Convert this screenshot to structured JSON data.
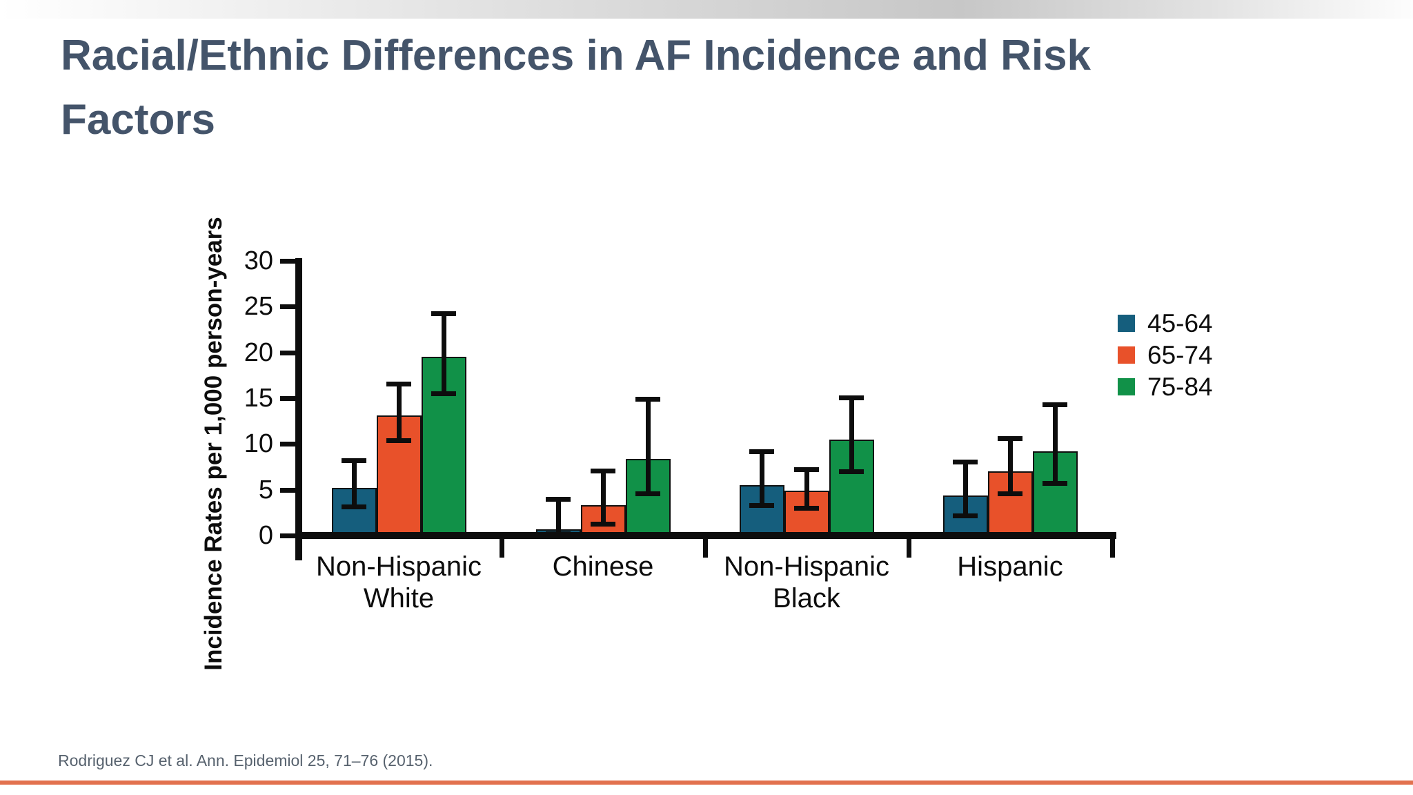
{
  "slide": {
    "title_line1": "Racial/Ethnic Differences in AF Incidence and Risk",
    "title_line2": "Factors",
    "citation": "Rodriguez CJ et al. Ann. Epidemiol 25, 71–76 (2015)."
  },
  "colors": {
    "title_text": "#44546a",
    "citation_text": "#57626e",
    "bottom_accent_line": "#e2714e",
    "axis_and_error_bars": "#0d0d0d",
    "series_45_64": "#155e7d",
    "series_65_74": "#e8512a",
    "series_75_84": "#119148"
  },
  "chart_data": {
    "type": "bar",
    "title": "",
    "categories": [
      "Non-Hispanic White",
      "Chinese",
      "Non-Hispanic Black",
      "Hispanic"
    ],
    "series": [
      {
        "name": "45-64",
        "color": "#155e7d",
        "values": [
          5.2,
          0.7,
          5.5,
          4.4
        ],
        "error_low": [
          3.2,
          0.2,
          3.3,
          2.2
        ],
        "error_high": [
          8.2,
          4.0,
          9.2,
          8.1
        ]
      },
      {
        "name": "65-74",
        "color": "#e8512a",
        "values": [
          13.1,
          3.3,
          4.9,
          7.0
        ],
        "error_low": [
          10.4,
          1.3,
          3.0,
          4.6
        ],
        "error_high": [
          16.6,
          7.1,
          7.2,
          10.6
        ]
      },
      {
        "name": "75-84",
        "color": "#119148",
        "values": [
          19.5,
          8.4,
          10.5,
          9.2
        ],
        "error_low": [
          15.5,
          4.6,
          7.0,
          5.7
        ],
        "error_high": [
          24.3,
          14.9,
          15.1,
          14.3
        ]
      }
    ],
    "xlabel": "",
    "ylabel": "Incidence Rates per 1,000 person-years",
    "ylim": [
      0,
      30
    ],
    "yticks": [
      0,
      5,
      10,
      15,
      20,
      25,
      30
    ],
    "grid": false,
    "error_bars": true,
    "legend_position": "right"
  }
}
